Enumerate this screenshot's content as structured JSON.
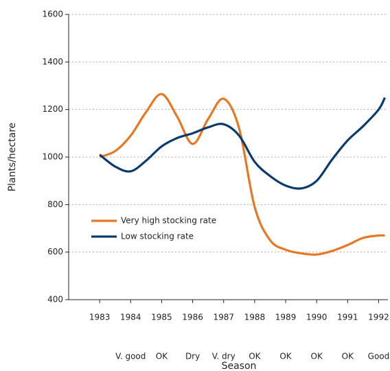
{
  "chart_data": {
    "type": "line",
    "x_label": "Season",
    "y_label": "Plants/hectare",
    "x": [
      1983,
      1983.5,
      1984,
      1984.5,
      1985,
      1985.5,
      1986,
      1986.5,
      1987,
      1987.5,
      1988,
      1988.5,
      1989,
      1989.5,
      1990,
      1990.5,
      1991,
      1991.5,
      1992,
      1992.2
    ],
    "series": [
      {
        "name": "Very high stocking rate",
        "color": "#e87722",
        "values": [
          1000,
          1025,
          1090,
          1190,
          1265,
          1170,
          1055,
          1160,
          1245,
          1120,
          790,
          650,
          610,
          595,
          590,
          605,
          630,
          660,
          670,
          670
        ]
      },
      {
        "name": "Low stocking rate",
        "color": "#0b3a6e",
        "values": [
          1010,
          960,
          940,
          985,
          1045,
          1080,
          1100,
          1125,
          1138,
          1090,
          980,
          920,
          880,
          868,
          900,
          990,
          1070,
          1130,
          1200,
          1250
        ]
      }
    ],
    "xlim": [
      1982,
      1992.3
    ],
    "xticks": [
      1983,
      1984,
      1985,
      1986,
      1987,
      1988,
      1989,
      1990,
      1991,
      1992
    ],
    "season_labels": [
      null,
      "V. good",
      "OK",
      "Dry",
      "V. dry",
      "OK",
      "OK",
      "OK",
      "OK",
      "Good"
    ],
    "ylim": [
      400,
      1600
    ],
    "yticks": [
      400,
      600,
      800,
      1000,
      1200,
      1400,
      1600
    ],
    "grid": true,
    "legend": "lower left"
  }
}
